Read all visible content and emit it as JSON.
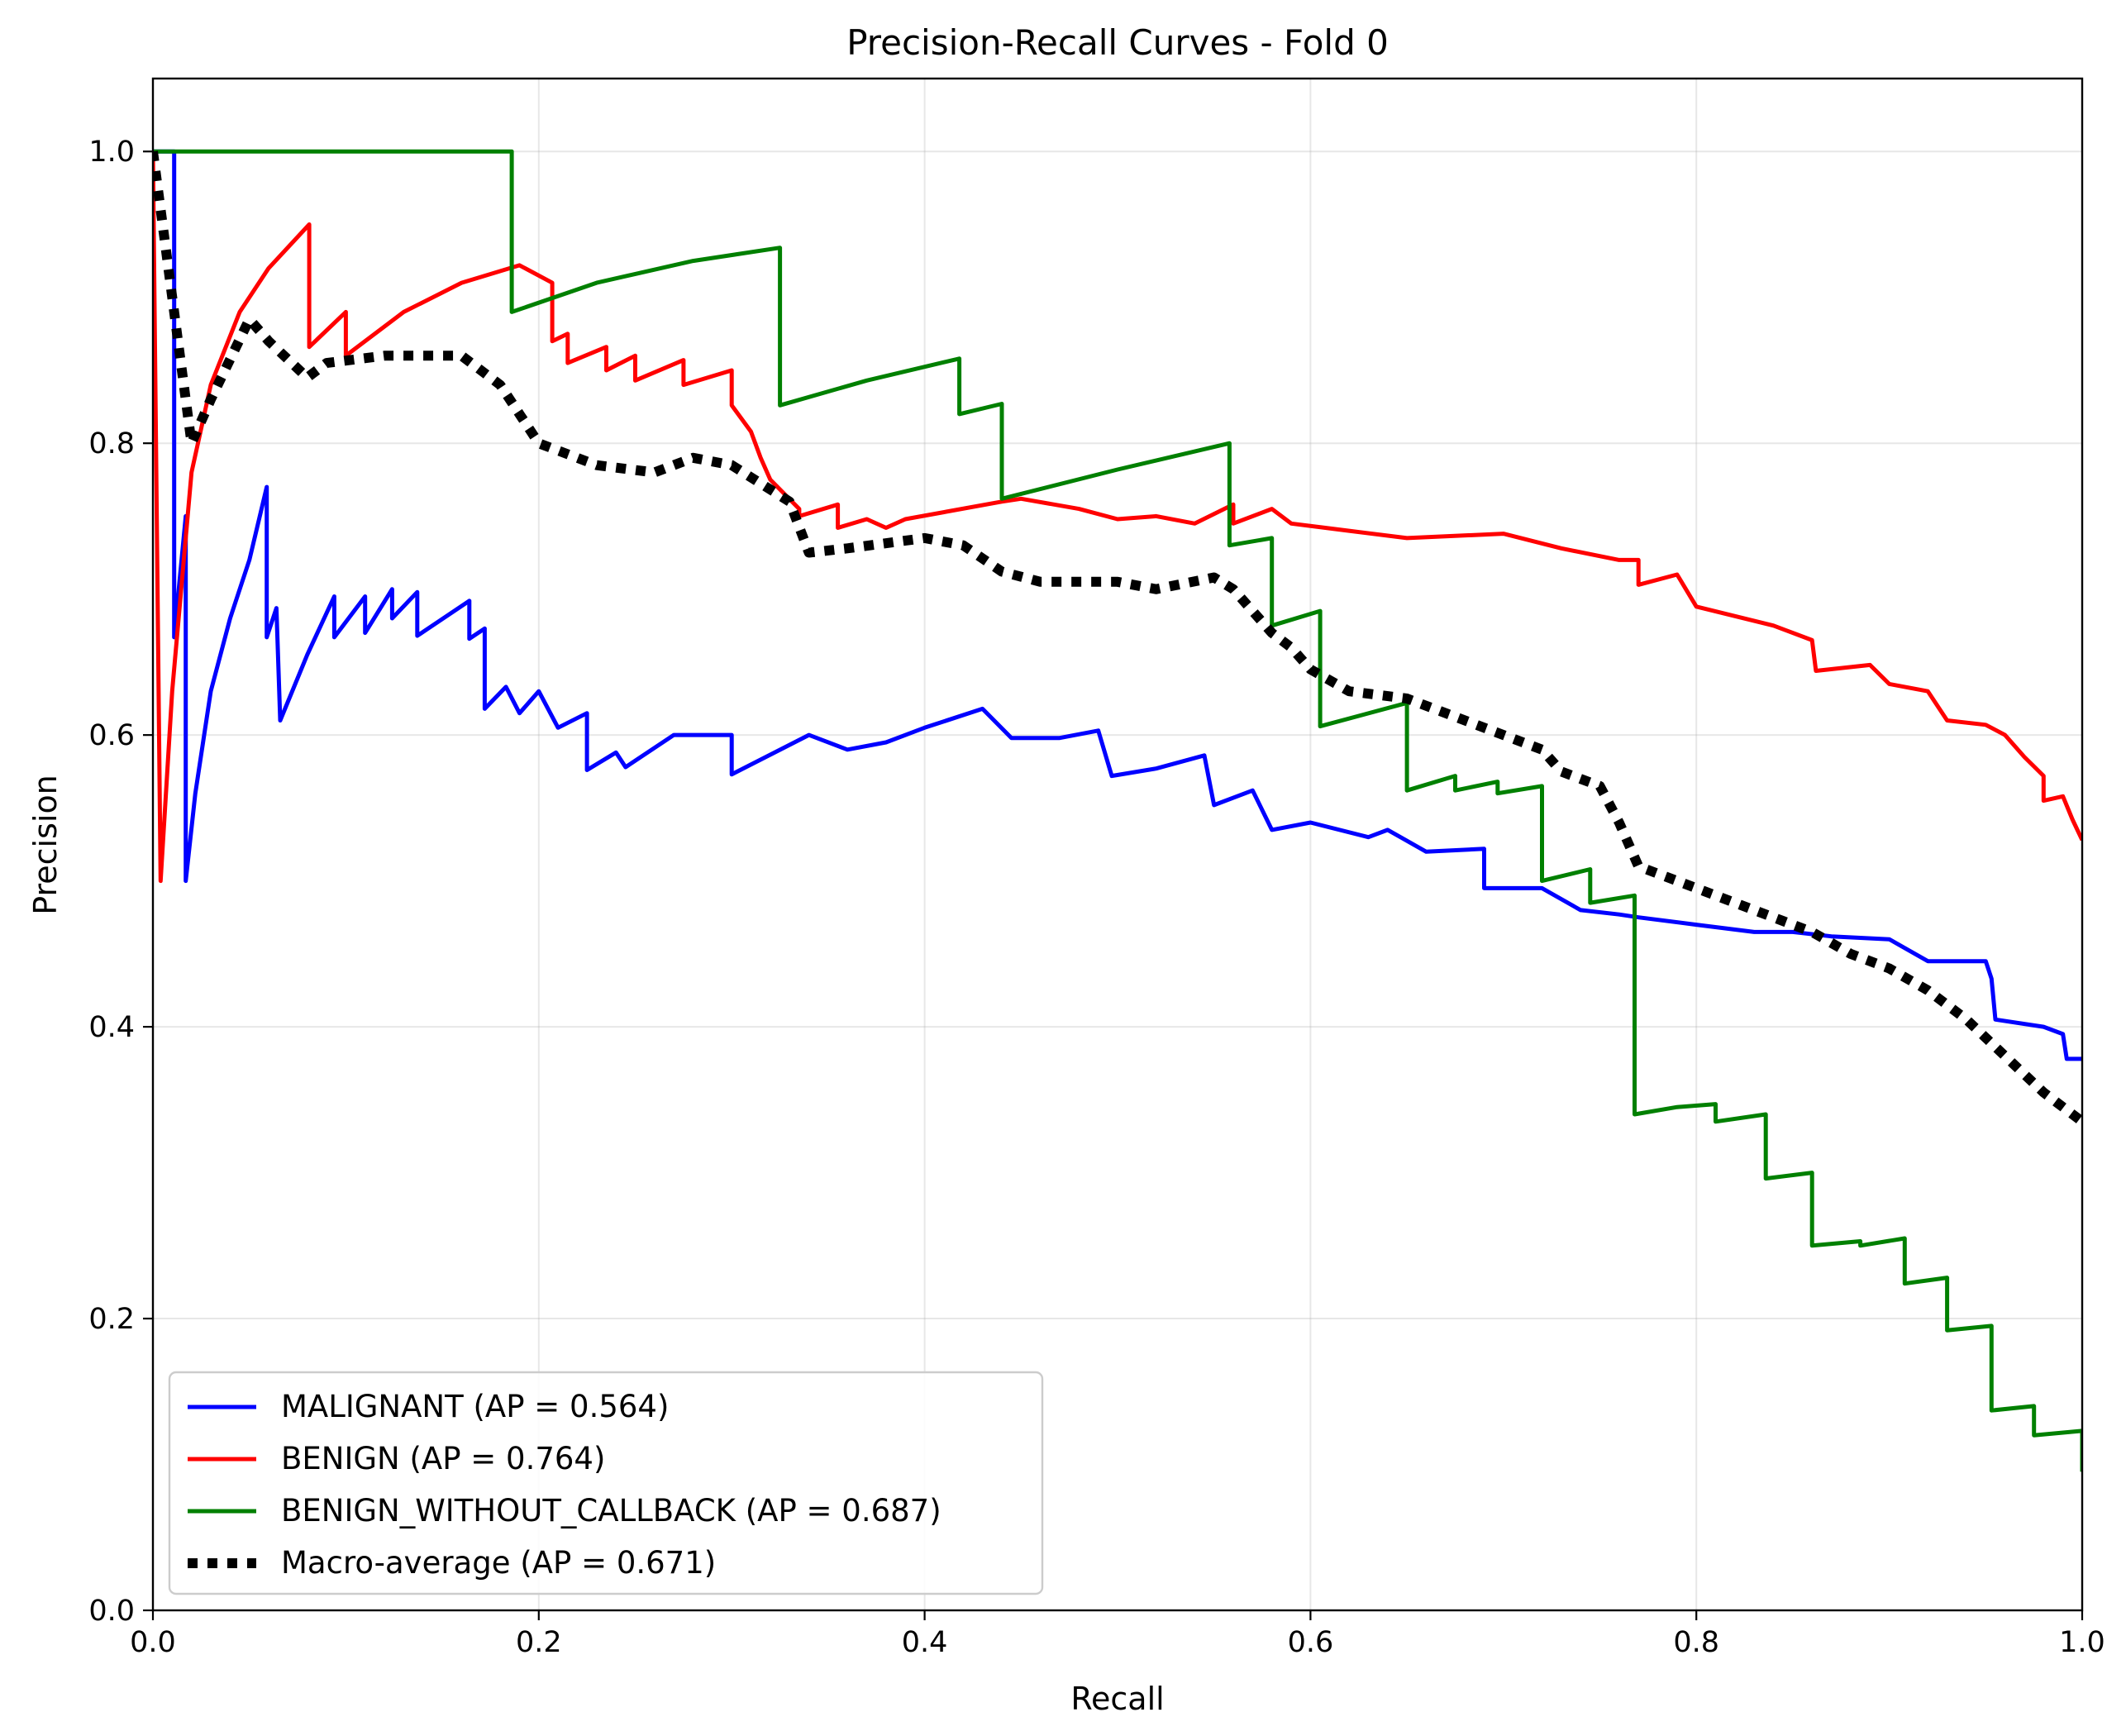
{
  "chart_data": {
    "type": "line",
    "title": "Precision-Recall Curves - Fold 0",
    "xlabel": "Recall",
    "ylabel": "Precision",
    "xlim": [
      0.0,
      1.0
    ],
    "ylim": [
      0.0,
      1.05
    ],
    "xticks": [
      0.0,
      0.2,
      0.4,
      0.6,
      0.8,
      1.0
    ],
    "yticks": [
      0.0,
      0.2,
      0.4,
      0.6,
      0.8,
      1.0
    ],
    "xtick_labels": [
      "0.0",
      "0.2",
      "0.4",
      "0.6",
      "0.8",
      "1.0"
    ],
    "ytick_labels": [
      "0.0",
      "0.2",
      "0.4",
      "0.6",
      "0.8",
      "1.0"
    ],
    "grid": true,
    "legend_position": "lower-left",
    "series": [
      {
        "name": "MALIGNANT (AP = 0.564)",
        "color": "#0000ff",
        "style": "solid",
        "points": [
          [
            0.0,
            1.0
          ],
          [
            0.008,
            1.0
          ],
          [
            0.011,
            1.0
          ],
          [
            0.011,
            0.667
          ],
          [
            0.017,
            0.75
          ],
          [
            0.017,
            0.5
          ],
          [
            0.022,
            0.56
          ],
          [
            0.03,
            0.63
          ],
          [
            0.04,
            0.68
          ],
          [
            0.05,
            0.72
          ],
          [
            0.059,
            0.77
          ],
          [
            0.059,
            0.667
          ],
          [
            0.064,
            0.687
          ],
          [
            0.066,
            0.61
          ],
          [
            0.08,
            0.655
          ],
          [
            0.094,
            0.695
          ],
          [
            0.094,
            0.667
          ],
          [
            0.11,
            0.695
          ],
          [
            0.11,
            0.67
          ],
          [
            0.124,
            0.7
          ],
          [
            0.124,
            0.68
          ],
          [
            0.137,
            0.698
          ],
          [
            0.137,
            0.668
          ],
          [
            0.164,
            0.692
          ],
          [
            0.164,
            0.666
          ],
          [
            0.172,
            0.673
          ],
          [
            0.172,
            0.618
          ],
          [
            0.183,
            0.633
          ],
          [
            0.19,
            0.615
          ],
          [
            0.2,
            0.63
          ],
          [
            0.21,
            0.605
          ],
          [
            0.225,
            0.615
          ],
          [
            0.225,
            0.576
          ],
          [
            0.24,
            0.588
          ],
          [
            0.245,
            0.578
          ],
          [
            0.27,
            0.6
          ],
          [
            0.3,
            0.6
          ],
          [
            0.3,
            0.573
          ],
          [
            0.34,
            0.6
          ],
          [
            0.36,
            0.59
          ],
          [
            0.38,
            0.595
          ],
          [
            0.4,
            0.605
          ],
          [
            0.43,
            0.618
          ],
          [
            0.445,
            0.598
          ],
          [
            0.47,
            0.598
          ],
          [
            0.49,
            0.603
          ],
          [
            0.497,
            0.572
          ],
          [
            0.52,
            0.577
          ],
          [
            0.545,
            0.586
          ],
          [
            0.55,
            0.552
          ],
          [
            0.57,
            0.562
          ],
          [
            0.58,
            0.535
          ],
          [
            0.6,
            0.54
          ],
          [
            0.63,
            0.53
          ],
          [
            0.64,
            0.535
          ],
          [
            0.66,
            0.52
          ],
          [
            0.69,
            0.522
          ],
          [
            0.69,
            0.495
          ],
          [
            0.7,
            0.495
          ],
          [
            0.72,
            0.495
          ],
          [
            0.74,
            0.48
          ],
          [
            0.76,
            0.477
          ],
          [
            0.77,
            0.475
          ],
          [
            0.8,
            0.47
          ],
          [
            0.83,
            0.465
          ],
          [
            0.85,
            0.465
          ],
          [
            0.87,
            0.462
          ],
          [
            0.9,
            0.46
          ],
          [
            0.92,
            0.445
          ],
          [
            0.95,
            0.445
          ],
          [
            0.953,
            0.433
          ],
          [
            0.955,
            0.405
          ],
          [
            0.98,
            0.4
          ],
          [
            0.99,
            0.395
          ],
          [
            0.992,
            0.378
          ],
          [
            1.0,
            0.378
          ]
        ]
      },
      {
        "name": "BENIGN (AP = 0.764)",
        "color": "#ff0000",
        "style": "solid",
        "points": [
          [
            0.0,
            1.0
          ],
          [
            0.004,
            0.5
          ],
          [
            0.01,
            0.63
          ],
          [
            0.02,
            0.78
          ],
          [
            0.03,
            0.84
          ],
          [
            0.045,
            0.89
          ],
          [
            0.06,
            0.92
          ],
          [
            0.081,
            0.95
          ],
          [
            0.081,
            0.866
          ],
          [
            0.1,
            0.89
          ],
          [
            0.1,
            0.86
          ],
          [
            0.13,
            0.89
          ],
          [
            0.16,
            0.91
          ],
          [
            0.19,
            0.922
          ],
          [
            0.207,
            0.91
          ],
          [
            0.207,
            0.87
          ],
          [
            0.215,
            0.875
          ],
          [
            0.215,
            0.855
          ],
          [
            0.235,
            0.866
          ],
          [
            0.235,
            0.85
          ],
          [
            0.25,
            0.86
          ],
          [
            0.25,
            0.843
          ],
          [
            0.275,
            0.857
          ],
          [
            0.275,
            0.84
          ],
          [
            0.3,
            0.85
          ],
          [
            0.3,
            0.826
          ],
          [
            0.31,
            0.808
          ],
          [
            0.315,
            0.79
          ],
          [
            0.32,
            0.775
          ],
          [
            0.335,
            0.755
          ],
          [
            0.335,
            0.75
          ],
          [
            0.355,
            0.758
          ],
          [
            0.355,
            0.742
          ],
          [
            0.37,
            0.748
          ],
          [
            0.38,
            0.742
          ],
          [
            0.39,
            0.748
          ],
          [
            0.44,
            0.76
          ],
          [
            0.45,
            0.762
          ],
          [
            0.48,
            0.755
          ],
          [
            0.5,
            0.748
          ],
          [
            0.52,
            0.75
          ],
          [
            0.54,
            0.745
          ],
          [
            0.56,
            0.758
          ],
          [
            0.56,
            0.745
          ],
          [
            0.58,
            0.755
          ],
          [
            0.59,
            0.745
          ],
          [
            0.62,
            0.74
          ],
          [
            0.65,
            0.735
          ],
          [
            0.7,
            0.738
          ],
          [
            0.73,
            0.728
          ],
          [
            0.76,
            0.72
          ],
          [
            0.77,
            0.72
          ],
          [
            0.77,
            0.703
          ],
          [
            0.79,
            0.71
          ],
          [
            0.8,
            0.688
          ],
          [
            0.84,
            0.675
          ],
          [
            0.86,
            0.665
          ],
          [
            0.862,
            0.644
          ],
          [
            0.89,
            0.648
          ],
          [
            0.9,
            0.635
          ],
          [
            0.92,
            0.63
          ],
          [
            0.93,
            0.61
          ],
          [
            0.95,
            0.607
          ],
          [
            0.96,
            0.6
          ],
          [
            0.97,
            0.585
          ],
          [
            0.98,
            0.572
          ],
          [
            0.98,
            0.555
          ],
          [
            0.99,
            0.558
          ],
          [
            0.995,
            0.542
          ],
          [
            1.0,
            0.528
          ]
        ]
      },
      {
        "name": "BENIGN_WITHOUT_CALLBACK (AP = 0.687)",
        "color": "#008000",
        "style": "solid",
        "points": [
          [
            0.0,
            1.0
          ],
          [
            0.186,
            1.0
          ],
          [
            0.186,
            0.89
          ],
          [
            0.23,
            0.91
          ],
          [
            0.28,
            0.925
          ],
          [
            0.325,
            0.934
          ],
          [
            0.325,
            0.826
          ],
          [
            0.37,
            0.843
          ],
          [
            0.418,
            0.858
          ],
          [
            0.418,
            0.82
          ],
          [
            0.44,
            0.827
          ],
          [
            0.44,
            0.762
          ],
          [
            0.5,
            0.782
          ],
          [
            0.558,
            0.8
          ],
          [
            0.558,
            0.73
          ],
          [
            0.58,
            0.735
          ],
          [
            0.58,
            0.675
          ],
          [
            0.605,
            0.685
          ],
          [
            0.605,
            0.606
          ],
          [
            0.65,
            0.622
          ],
          [
            0.65,
            0.562
          ],
          [
            0.675,
            0.572
          ],
          [
            0.675,
            0.562
          ],
          [
            0.697,
            0.568
          ],
          [
            0.697,
            0.56
          ],
          [
            0.72,
            0.565
          ],
          [
            0.72,
            0.5
          ],
          [
            0.745,
            0.508
          ],
          [
            0.745,
            0.485
          ],
          [
            0.768,
            0.49
          ],
          [
            0.768,
            0.34
          ],
          [
            0.79,
            0.345
          ],
          [
            0.81,
            0.347
          ],
          [
            0.81,
            0.335
          ],
          [
            0.836,
            0.34
          ],
          [
            0.836,
            0.296
          ],
          [
            0.86,
            0.3
          ],
          [
            0.86,
            0.25
          ],
          [
            0.885,
            0.253
          ],
          [
            0.885,
            0.25
          ],
          [
            0.908,
            0.255
          ],
          [
            0.908,
            0.224
          ],
          [
            0.93,
            0.228
          ],
          [
            0.93,
            0.192
          ],
          [
            0.953,
            0.195
          ],
          [
            0.953,
            0.137
          ],
          [
            0.975,
            0.14
          ],
          [
            0.975,
            0.12
          ],
          [
            1.0,
            0.123
          ],
          [
            1.0,
            0.095
          ]
        ]
      },
      {
        "name": "Macro-average (AP = 0.671)",
        "color": "#000000",
        "style": "dotted",
        "points": [
          [
            0.0,
            1.0
          ],
          [
            0.005,
            0.95
          ],
          [
            0.012,
            0.88
          ],
          [
            0.02,
            0.8
          ],
          [
            0.03,
            0.83
          ],
          [
            0.05,
            0.885
          ],
          [
            0.06,
            0.87
          ],
          [
            0.08,
            0.845
          ],
          [
            0.09,
            0.855
          ],
          [
            0.12,
            0.86
          ],
          [
            0.16,
            0.86
          ],
          [
            0.18,
            0.84
          ],
          [
            0.2,
            0.8
          ],
          [
            0.23,
            0.785
          ],
          [
            0.26,
            0.78
          ],
          [
            0.28,
            0.79
          ],
          [
            0.3,
            0.785
          ],
          [
            0.33,
            0.76
          ],
          [
            0.34,
            0.725
          ],
          [
            0.36,
            0.728
          ],
          [
            0.4,
            0.735
          ],
          [
            0.42,
            0.73
          ],
          [
            0.44,
            0.712
          ],
          [
            0.46,
            0.705
          ],
          [
            0.5,
            0.705
          ],
          [
            0.52,
            0.7
          ],
          [
            0.55,
            0.708
          ],
          [
            0.56,
            0.7
          ],
          [
            0.58,
            0.67
          ],
          [
            0.59,
            0.66
          ],
          [
            0.6,
            0.645
          ],
          [
            0.62,
            0.63
          ],
          [
            0.65,
            0.625
          ],
          [
            0.7,
            0.6
          ],
          [
            0.72,
            0.59
          ],
          [
            0.73,
            0.575
          ],
          [
            0.75,
            0.565
          ],
          [
            0.76,
            0.54
          ],
          [
            0.77,
            0.51
          ],
          [
            0.8,
            0.495
          ],
          [
            0.83,
            0.48
          ],
          [
            0.86,
            0.465
          ],
          [
            0.88,
            0.45
          ],
          [
            0.9,
            0.44
          ],
          [
            0.92,
            0.425
          ],
          [
            0.94,
            0.405
          ],
          [
            0.96,
            0.38
          ],
          [
            0.98,
            0.355
          ],
          [
            1.0,
            0.335
          ]
        ]
      }
    ]
  }
}
